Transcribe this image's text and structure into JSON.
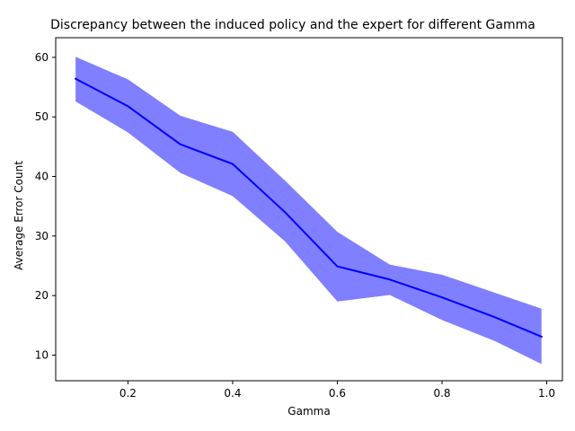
{
  "chart_data": {
    "type": "line",
    "title": "Discrepancy between the induced policy and the expert for different Gamma",
    "xlabel": "Gamma",
    "ylabel": "Average Error Count",
    "xlim": [
      0.062,
      1.03
    ],
    "ylim": [
      5.7,
      63.3
    ],
    "xticks": [
      0.2,
      0.4,
      0.6,
      0.8,
      1.0
    ],
    "xtick_labels": [
      "0.2",
      "0.4",
      "0.6",
      "0.8",
      "1.0"
    ],
    "yticks": [
      10,
      20,
      30,
      40,
      50,
      60
    ],
    "ytick_labels": [
      "10",
      "20",
      "30",
      "40",
      "50",
      "60"
    ],
    "grid": false,
    "line_color": "#0000ff",
    "band_color": "#0000ff",
    "band_opacity": 0.5,
    "x": [
      0.1,
      0.2,
      0.3,
      0.4,
      0.5,
      0.6,
      0.7,
      0.8,
      0.9,
      0.99
    ],
    "mean": [
      56.4,
      51.8,
      45.4,
      42.1,
      34.0,
      24.9,
      22.7,
      19.7,
      16.4,
      13.1
    ],
    "upper": [
      60.1,
      56.3,
      50.2,
      47.5,
      39.3,
      30.7,
      25.2,
      23.5,
      20.5,
      17.8
    ],
    "lower": [
      52.6,
      47.4,
      40.6,
      36.7,
      29.1,
      19.0,
      20.1,
      15.9,
      12.4,
      8.5
    ]
  }
}
